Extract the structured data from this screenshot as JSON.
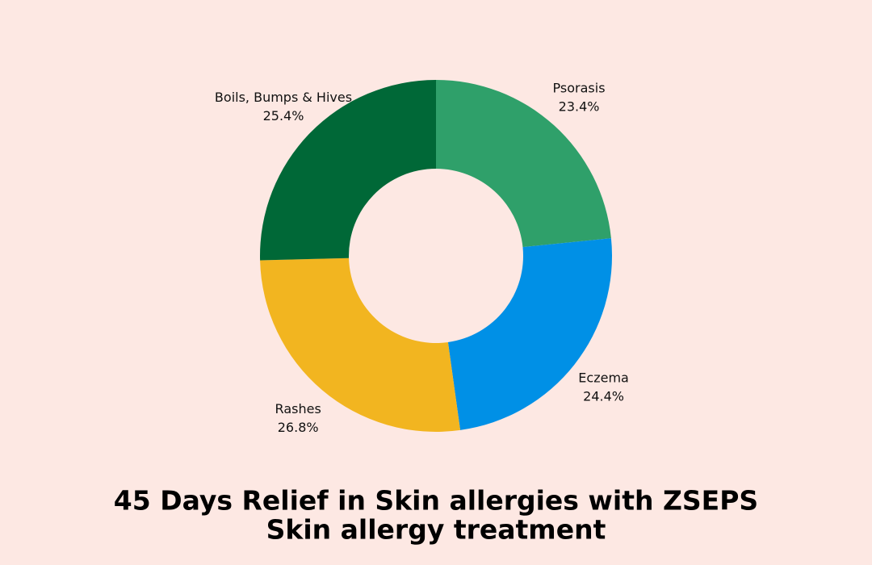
{
  "chart_data": {
    "type": "donut",
    "title": [
      "45 Days Relief in Skin allergies with ZSEPS",
      "Skin allergy treatment"
    ],
    "categories": [
      "Psorasis",
      "Eczema",
      "Rashes",
      "Boils, Bumps & Hives"
    ],
    "values": [
      23.4,
      24.4,
      26.8,
      25.4
    ],
    "value_labels": [
      "23.4%",
      "24.4%",
      "26.8%",
      "25.4%"
    ],
    "colors": [
      "#2fa06a",
      "#0090e6",
      "#f2b520",
      "#006837"
    ]
  }
}
